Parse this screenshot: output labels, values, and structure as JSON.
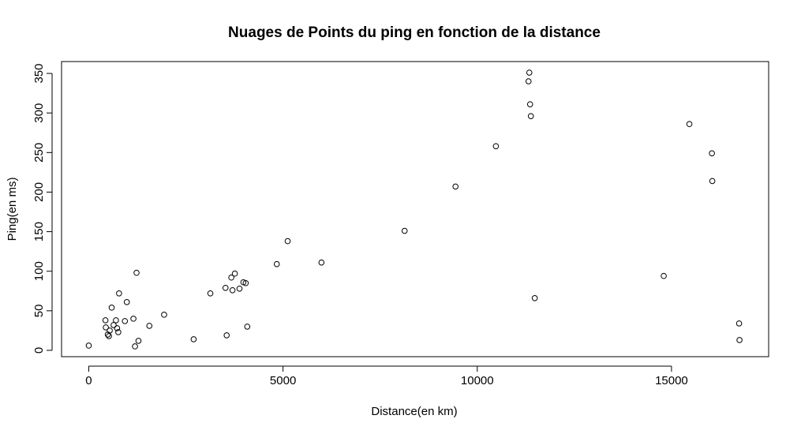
{
  "chart_data": {
    "type": "scatter",
    "title": "Nuages de Points du ping en fonction de la distance",
    "xlabel": "Distance(en km)",
    "ylabel": "Ping(en ms)",
    "xlim": [
      -700,
      17500
    ],
    "ylim": [
      -8,
      365
    ],
    "xticks": [
      0,
      5000,
      10000,
      15000
    ],
    "yticks": [
      0,
      50,
      100,
      150,
      200,
      250,
      300,
      350
    ],
    "grid": false,
    "legend": "none",
    "marker": "open-circle",
    "colors": {
      "points": "#000000",
      "background": "#ffffff"
    },
    "x": [
      0,
      430,
      440,
      490,
      520,
      540,
      590,
      640,
      700,
      730,
      760,
      780,
      930,
      980,
      1150,
      1190,
      1230,
      1280,
      1560,
      1940,
      2700,
      3130,
      3520,
      3550,
      3670,
      3700,
      3760,
      3880,
      3980,
      4040,
      4080,
      4840,
      5120,
      5990,
      8130,
      9440,
      10480,
      11320,
      11340,
      11360,
      11380,
      11480,
      14800,
      15460,
      16040,
      16050,
      16740,
      16750
    ],
    "y": [
      6,
      38,
      29,
      20,
      18,
      25,
      54,
      32,
      38,
      28,
      23,
      72,
      37,
      61,
      40,
      5,
      98,
      12,
      31,
      45,
      14,
      72,
      79,
      19,
      92,
      76,
      97,
      78,
      86,
      85,
      30,
      109,
      138,
      111,
      151,
      207,
      258,
      340,
      351,
      311,
      296,
      66,
      94,
      286,
      249,
      214,
      34,
      13
    ]
  }
}
